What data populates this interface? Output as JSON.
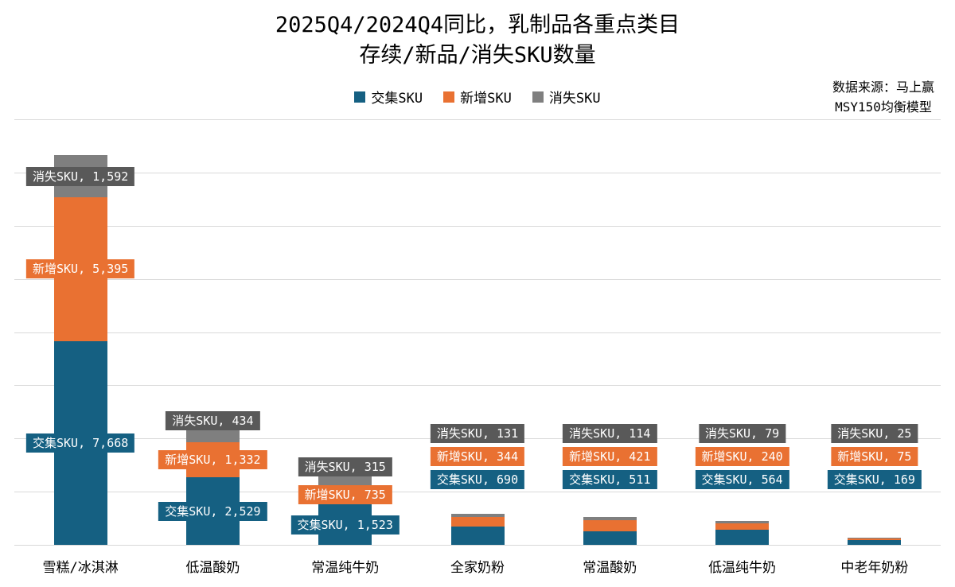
{
  "title": {
    "line1": "2025Q4/2024Q4同比，乳制品各重点类目",
    "line2": "存续/新品/消失SKU数量"
  },
  "source": {
    "line1": "数据来源：马上赢",
    "line2": "MSY150均衡模型"
  },
  "colors": {
    "intersect_sku": "#156082",
    "new_sku": "#E97132",
    "lost_sku_bar": "#7F7F7F",
    "lost_sku_label_bg": "#595959",
    "gridline": "#D9D9D9",
    "label_text": "#FFFFFF",
    "background": "#FFFFFF"
  },
  "chart_data": {
    "type": "bar",
    "stacked": true,
    "title": "2025Q4/2024Q4同比，乳制品各重点类目 存续/新品/消失SKU数量",
    "categories": [
      "雪糕/冰淇淋",
      "低温酸奶",
      "常温纯牛奶",
      "全家奶粉",
      "常温酸奶",
      "低温纯牛奶",
      "中老年奶粉"
    ],
    "series": [
      {
        "name": "交集SKU",
        "color": "#156082",
        "label_bg": "#156082",
        "values": [
          7668,
          2529,
          1523,
          690,
          511,
          564,
          169
        ]
      },
      {
        "name": "新增SKU",
        "color": "#E97132",
        "label_bg": "#E97132",
        "values": [
          5395,
          1332,
          735,
          344,
          421,
          240,
          75
        ]
      },
      {
        "name": "消失SKU",
        "color": "#7F7F7F",
        "label_bg": "#595959",
        "values": [
          1592,
          434,
          315,
          131,
          114,
          79,
          25
        ]
      }
    ],
    "data_labels": [
      [
        "交集SKU, 7,668",
        "新增SKU, 5,395",
        "消失SKU, 1,592"
      ],
      [
        "交集SKU, 2,529",
        "新增SKU, 1,332",
        "消失SKU, 434"
      ],
      [
        "交集SKU, 1,523",
        "新增SKU, 735",
        "消失SKU, 315"
      ],
      [
        "交集SKU, 690",
        "新增SKU, 344",
        "消失SKU, 131"
      ],
      [
        "交集SKU, 511",
        "新增SKU, 421",
        "消失SKU, 114"
      ],
      [
        "交集SKU, 564",
        "新增SKU, 240",
        "消失SKU, 79"
      ],
      [
        "交集SKU, 169",
        "新增SKU, 75",
        "消失SKU, 25"
      ]
    ],
    "xlabel": "",
    "ylabel": "",
    "ylim": [
      0,
      16000
    ],
    "grid_step": 2000,
    "grid": true,
    "y_axis_labels_visible": false,
    "legend_position": "top"
  }
}
